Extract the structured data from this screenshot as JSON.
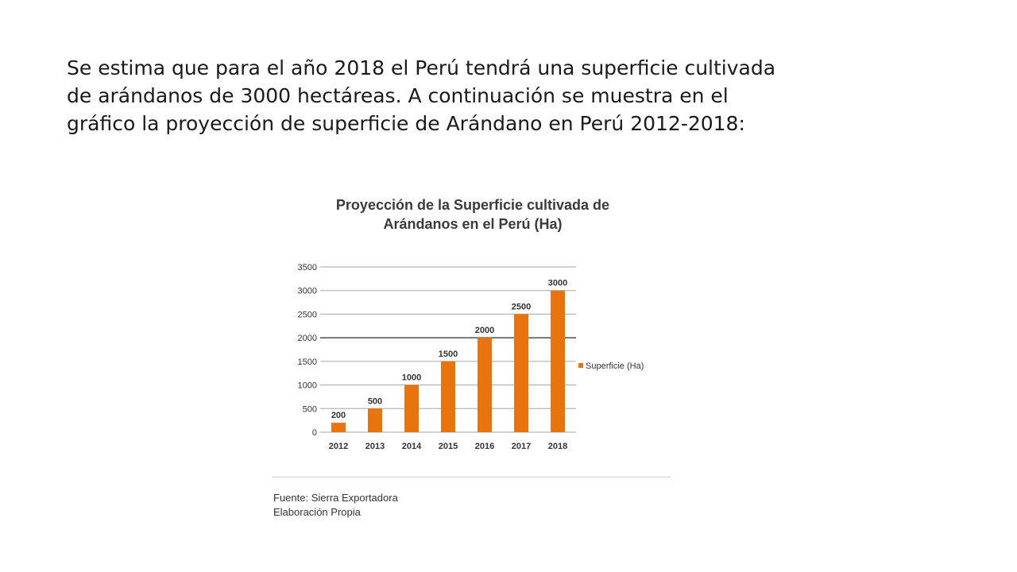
{
  "intro": {
    "line1": "Se estima que para el año 2018 el Perú tendrá una superficie cultivada",
    "line2": "de arándanos de 3000 hectáreas. A continuación se  muestra en el",
    "line3": "gráfico la proyección de superficie de Arándano en Perú 2012-2018:"
  },
  "source": {
    "line1": "Fuente: Sierra Exportadora",
    "line2": "Elaboración Propia"
  },
  "colors": {
    "bar": "#E8740F",
    "grid": "#a6a6a6",
    "highlight_grid": "#5a5a5a"
  },
  "chart_data": {
    "type": "bar",
    "title_line1": "Proyección de la Superficie cultivada de",
    "title_line2": "Arándanos en el Perú (Ha)",
    "categories": [
      "2012",
      "2013",
      "2014",
      "2015",
      "2016",
      "2017",
      "2018"
    ],
    "series": [
      {
        "name": "Superficie (Ha)",
        "values": [
          200,
          500,
          1000,
          1500,
          2000,
          2500,
          3000
        ]
      }
    ],
    "data_labels": [
      "200",
      "500",
      "1000",
      "1500",
      "2000",
      "2500",
      "3000"
    ],
    "yticks": [
      0,
      500,
      1000,
      1500,
      2000,
      2500,
      3000,
      3500
    ],
    "ylim": [
      0,
      3500
    ],
    "grid": true,
    "legend": "right",
    "xlabel": "",
    "ylabel": ""
  }
}
